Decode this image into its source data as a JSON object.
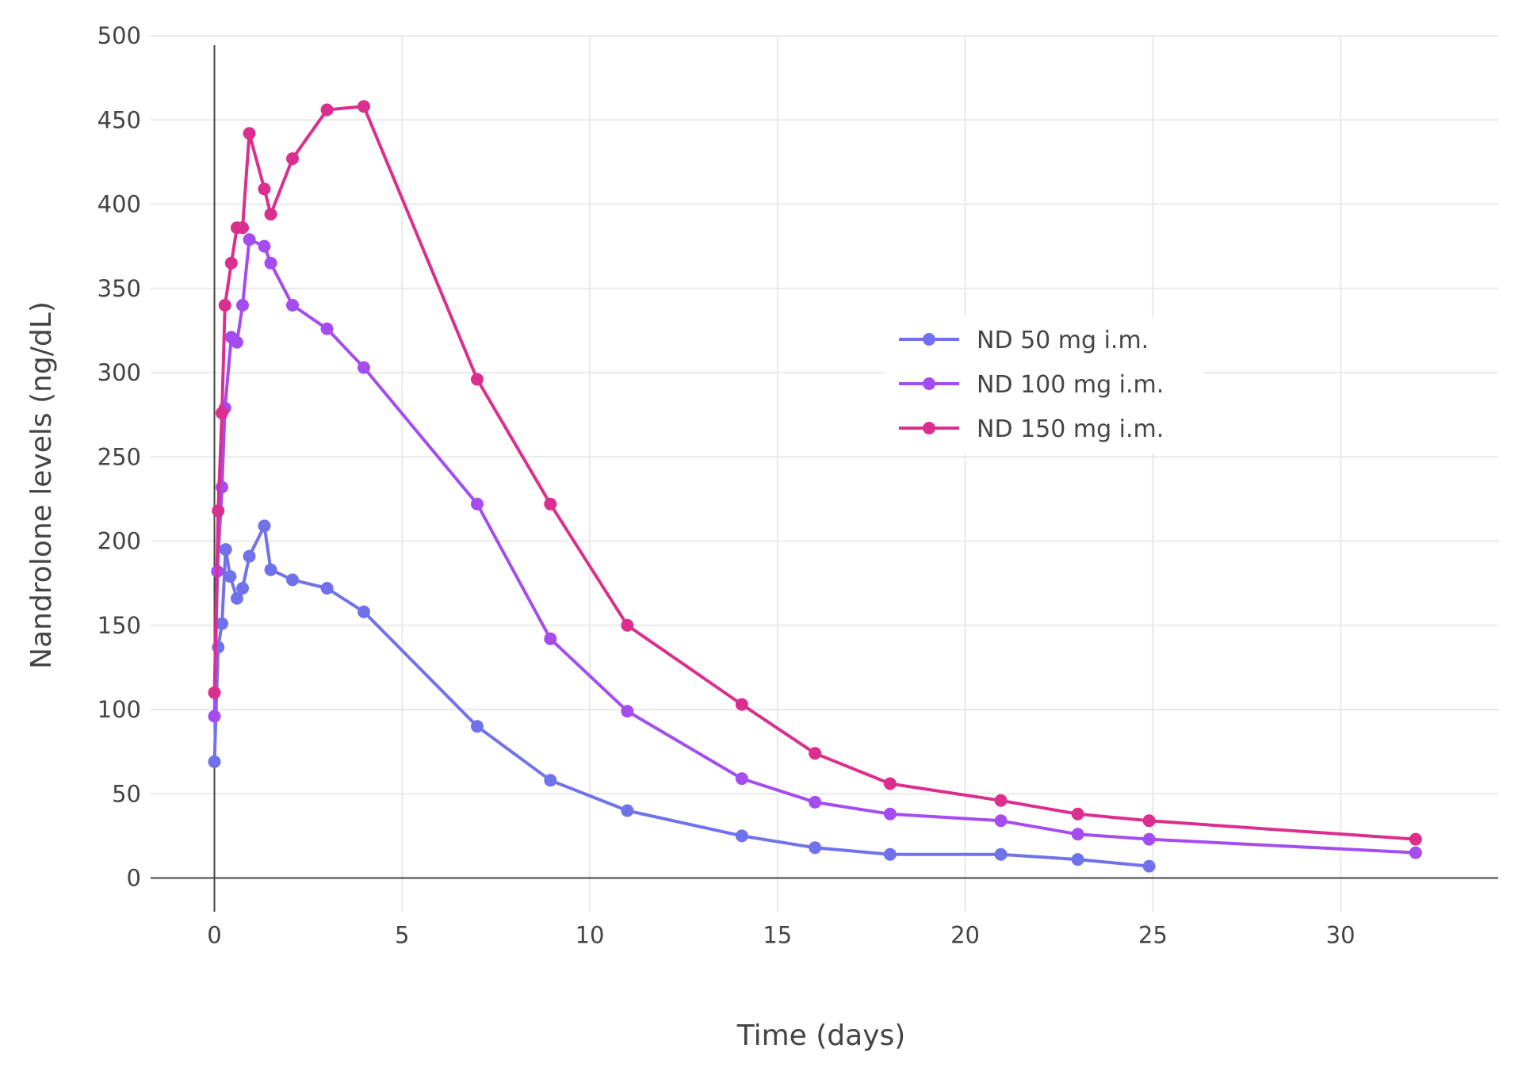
{
  "chart_data": {
    "type": "line",
    "xlabel": "Time (days)",
    "ylabel": "Nandrolone levels (ng/dL)",
    "xlim": [
      -1.7,
      34.2
    ],
    "ylim": [
      -20,
      500
    ],
    "x_ticks": [
      0,
      5,
      10,
      15,
      20,
      25,
      30
    ],
    "y_ticks": [
      0,
      50,
      100,
      150,
      200,
      250,
      300,
      350,
      400,
      450,
      500
    ],
    "grid": true,
    "legend": "center-right",
    "series": [
      {
        "name": "ND 50 mg i.m.",
        "color": "#6f72ea",
        "x": [
          0,
          0.1,
          0.2,
          0.3,
          0.42,
          0.6,
          0.75,
          0.93,
          1.33,
          1.5,
          2.08,
          3.0,
          3.98,
          7.0,
          8.95,
          11.0,
          14.05,
          16.0,
          18.0,
          20.95,
          23.0,
          24.9
        ],
        "y": [
          69,
          137,
          151,
          195,
          179,
          166,
          172,
          191,
          209,
          183,
          177,
          172,
          158,
          90,
          58,
          40,
          25,
          18,
          14,
          14,
          11,
          7
        ]
      },
      {
        "name": "ND 100 mg i.m.",
        "color": "#a54cf0",
        "x": [
          0,
          0.08,
          0.2,
          0.28,
          0.45,
          0.6,
          0.75,
          0.93,
          1.33,
          1.5,
          2.08,
          3.0,
          3.98,
          7.0,
          8.95,
          11.0,
          14.05,
          16.0,
          18.0,
          20.95,
          23.0,
          24.9,
          32.0
        ],
        "y": [
          96,
          182,
          232,
          279,
          321,
          318,
          340,
          379,
          375,
          365,
          340,
          326,
          303,
          222,
          142,
          99,
          59,
          45,
          38,
          34,
          26,
          23,
          15
        ]
      },
      {
        "name": "ND 150 mg i.m.",
        "color": "#db2e8e",
        "x": [
          0,
          0.1,
          0.2,
          0.28,
          0.45,
          0.6,
          0.75,
          0.93,
          1.33,
          1.5,
          2.08,
          3.0,
          3.98,
          7.0,
          8.95,
          11.0,
          14.05,
          16.0,
          18.0,
          20.95,
          23.0,
          24.9,
          32.0
        ],
        "y": [
          110,
          218,
          276,
          340,
          365,
          386,
          386,
          442,
          409,
          394,
          427,
          456,
          458,
          296,
          222,
          150,
          103,
          74,
          56,
          46,
          38,
          34,
          23
        ]
      }
    ]
  }
}
